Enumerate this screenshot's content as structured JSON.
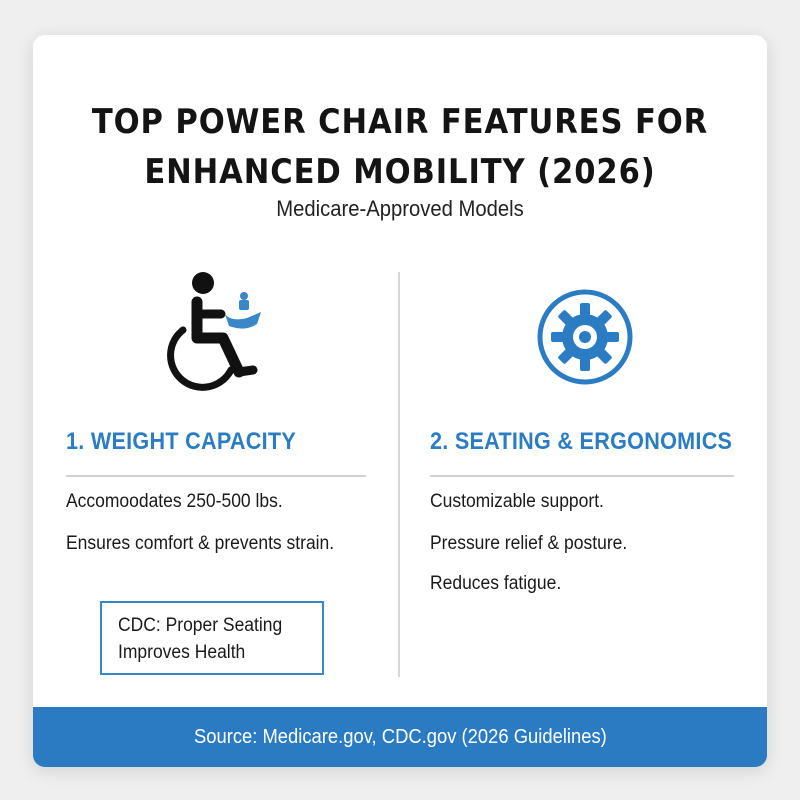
{
  "header": {
    "title": "TOP POWER CHAIR FEATURES FOR ENHANCED MOBILITY (2026)",
    "subtitle": "Medicare-Approved Models"
  },
  "features": [
    {
      "heading": "1. WEIGHT CAPACITY",
      "icon": "wheelchair-icon",
      "lines": [
        "Accomoodates 250-500 lbs.",
        "Ensures comfort & prevents strain."
      ],
      "callout": [
        "CDC: Proper Seating",
        "Improves Health"
      ]
    },
    {
      "heading": "2. SEATING & ERGONOMICS",
      "icon": "gear-icon",
      "lines": [
        "Customizable support.",
        "Pressure relief & posture.",
        "Reduces fatigue."
      ]
    }
  ],
  "footer": {
    "source": "Source: Medicare.gov, CDC.gov (2026 Guidelines)"
  },
  "colors": {
    "accent": "#2a7bc2",
    "text": "#141414",
    "background": "#ffffff"
  }
}
